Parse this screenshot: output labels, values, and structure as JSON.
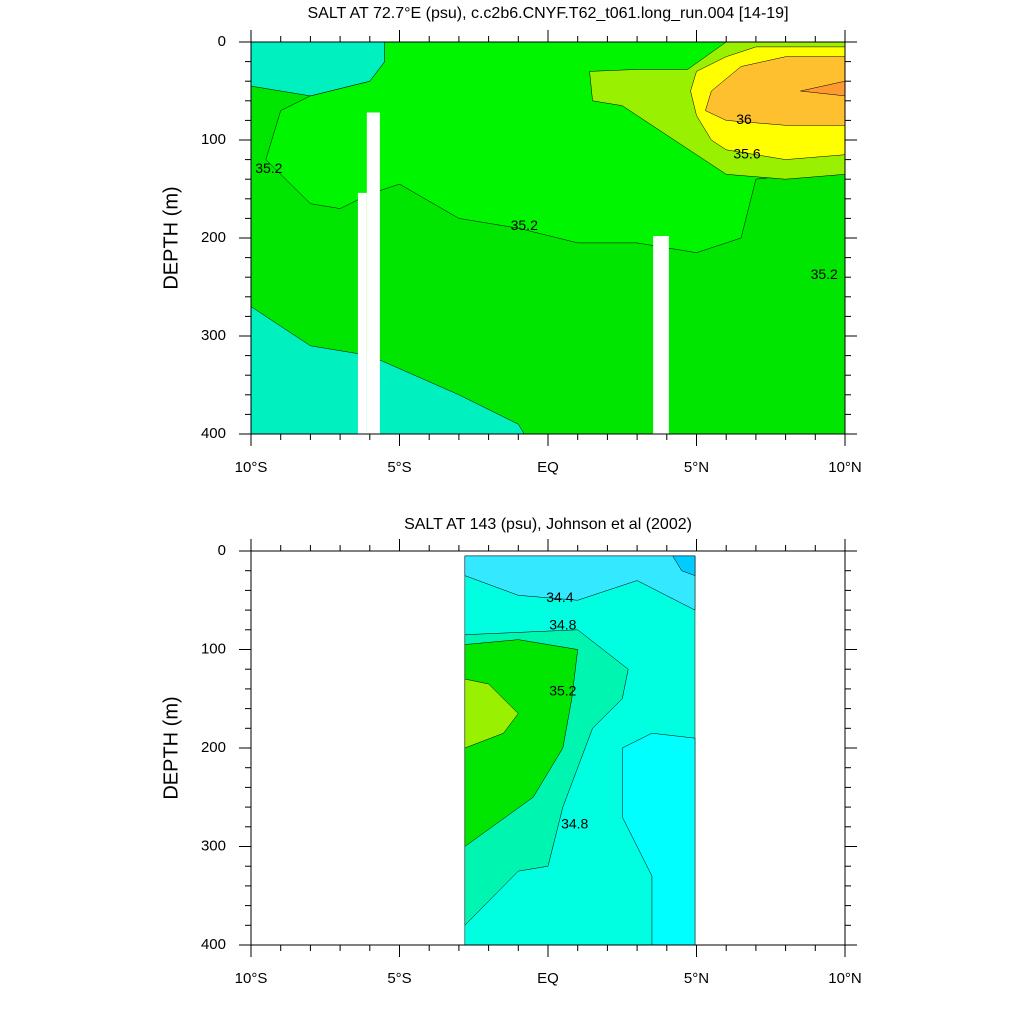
{
  "chart_data": [
    {
      "type": "contour",
      "title": "SALT AT  72.7°E (psu), c.c2b6.CNYF.T62_t061.long_run.004 [14-19]",
      "y_label": "DEPTH (m)",
      "xlim": [
        -10,
        10
      ],
      "ylim": [
        400,
        0
      ],
      "xticks": [
        {
          "value": -10,
          "label": "10°S"
        },
        {
          "value": -5,
          "label": "5°S"
        },
        {
          "value": 0,
          "label": "EQ"
        },
        {
          "value": 5,
          "label": "5°N"
        },
        {
          "value": 10,
          "label": "10°N"
        }
      ],
      "yticks": [
        0,
        100,
        200,
        300,
        400
      ],
      "regions": [
        {
          "color": "#00e600",
          "x": [
            -10,
            10,
            10,
            -10
          ],
          "y": [
            0,
            0,
            400,
            400
          ]
        },
        {
          "color": "#00f500",
          "x": [
            -5.5,
            10,
            10,
            7,
            6.5,
            5,
            3,
            1,
            -1,
            -3,
            -5,
            -6,
            -7,
            -8,
            -9.5,
            -9,
            -8,
            -6,
            -5.5
          ],
          "y": [
            0,
            0,
            130,
            140,
            200,
            215,
            205,
            205,
            190,
            180,
            145,
            155,
            170,
            165,
            120,
            70,
            55,
            40,
            20
          ]
        },
        {
          "color": "#00f0c0",
          "x": [
            -10,
            -5.5,
            -5.5,
            -6,
            -8,
            -10
          ],
          "y": [
            0,
            0,
            20,
            40,
            55,
            45
          ]
        },
        {
          "color": "#00f0c0",
          "x": [
            -10,
            -9,
            -8,
            -6,
            -3,
            -1,
            -0.8,
            -10
          ],
          "y": [
            270,
            290,
            310,
            320,
            360,
            390,
            400,
            400
          ]
        },
        {
          "color": "#99f000",
          "x": [
            1.4,
            3,
            4.7,
            6,
            10,
            10,
            8,
            6,
            5,
            4,
            2.5,
            1.5
          ],
          "y": [
            30,
            28,
            28,
            0,
            0,
            135,
            140,
            135,
            115,
            95,
            65,
            60
          ]
        },
        {
          "color": "#ffff00",
          "x": [
            4.8,
            5,
            6,
            7,
            10,
            10,
            8,
            6,
            5.5,
            5
          ],
          "y": [
            50,
            30,
            15,
            5,
            5,
            115,
            120,
            110,
            100,
            75
          ]
        },
        {
          "color": "#ffc030",
          "x": [
            5.5,
            6.5,
            8,
            10,
            10,
            8,
            6,
            5.3
          ],
          "y": [
            50,
            25,
            15,
            15,
            85,
            85,
            80,
            70
          ]
        },
        {
          "color": "#ff9a30",
          "x": [
            8.5,
            10,
            10
          ],
          "y": [
            50,
            40,
            55
          ]
        },
        {
          "color": "#ffffff",
          "x": [
            -6.4,
            -6.1,
            -6.1,
            -6.4
          ],
          "y": [
            154,
            154,
            400,
            400
          ]
        },
        {
          "color": "#ffffff",
          "x": [
            -6.1,
            -5.66,
            -5.66,
            -6.1
          ],
          "y": [
            72,
            72,
            400,
            400
          ]
        },
        {
          "color": "#ffffff",
          "x": [
            3.54,
            4.07,
            4.07,
            3.54
          ],
          "y": [
            198,
            198,
            400,
            400
          ]
        }
      ],
      "labels": [
        {
          "text": "35.2",
          "x": -9.4,
          "y": 130
        },
        {
          "text": "35.2",
          "x": -0.8,
          "y": 188
        },
        {
          "text": "35.2",
          "x": 9.3,
          "y": 238
        },
        {
          "text": "36",
          "x": 6.6,
          "y": 80
        },
        {
          "text": "35.6",
          "x": 6.7,
          "y": 115
        }
      ]
    },
    {
      "type": "contour",
      "title": "SALT AT 143 (psu), Johnson et al (2002)",
      "y_label": "DEPTH (m)",
      "xlim": [
        -10,
        10
      ],
      "ylim": [
        400,
        0
      ],
      "xticks": [
        {
          "value": -10,
          "label": "10°S"
        },
        {
          "value": -5,
          "label": "5°S"
        },
        {
          "value": 0,
          "label": "EQ"
        },
        {
          "value": 5,
          "label": "5°N"
        },
        {
          "value": 10,
          "label": "10°N"
        }
      ],
      "yticks": [
        0,
        100,
        200,
        300,
        400
      ],
      "regions": [
        {
          "color": "#00ffe0",
          "x": [
            -2.8,
            4.95,
            4.95,
            -2.8
          ],
          "y": [
            5,
            5,
            400,
            400
          ]
        },
        {
          "color": "#33e8ff",
          "x": [
            -2.8,
            4.95,
            4.95,
            3,
            1,
            -1,
            -2.8
          ],
          "y": [
            5,
            5,
            60,
            30,
            50,
            45,
            25
          ]
        },
        {
          "color": "#00ccff",
          "x": [
            4.2,
            4.95,
            4.95,
            4.5
          ],
          "y": [
            5,
            5,
            25,
            20
          ]
        },
        {
          "color": "#00ffff",
          "x": [
            2.5,
            3.5,
            4.95,
            4.95,
            3.5,
            3.5,
            2.5
          ],
          "y": [
            200,
            185,
            190,
            400,
            400,
            330,
            270
          ]
        },
        {
          "color": "#00f5b0",
          "x": [
            -2.8,
            1,
            2.7,
            2.5,
            1.5,
            0.5,
            0,
            -1,
            -2.8
          ],
          "y": [
            85,
            80,
            120,
            150,
            180,
            260,
            320,
            325,
            380
          ]
        },
        {
          "color": "#00e600",
          "x": [
            -2.8,
            -1,
            1,
            0.8,
            0.5,
            -0.5,
            -2.8
          ],
          "y": [
            95,
            90,
            100,
            150,
            200,
            250,
            300
          ]
        },
        {
          "color": "#99f000",
          "x": [
            -2.8,
            -2,
            -1,
            -1.5,
            -2.8
          ],
          "y": [
            130,
            135,
            165,
            185,
            200
          ]
        }
      ],
      "labels": [
        {
          "text": "34.4",
          "x": 0.4,
          "y": 48
        },
        {
          "text": "34.8",
          "x": 0.5,
          "y": 76
        },
        {
          "text": "35.2",
          "x": 0.5,
          "y": 143
        },
        {
          "text": "34.8",
          "x": 0.9,
          "y": 278
        }
      ]
    }
  ]
}
